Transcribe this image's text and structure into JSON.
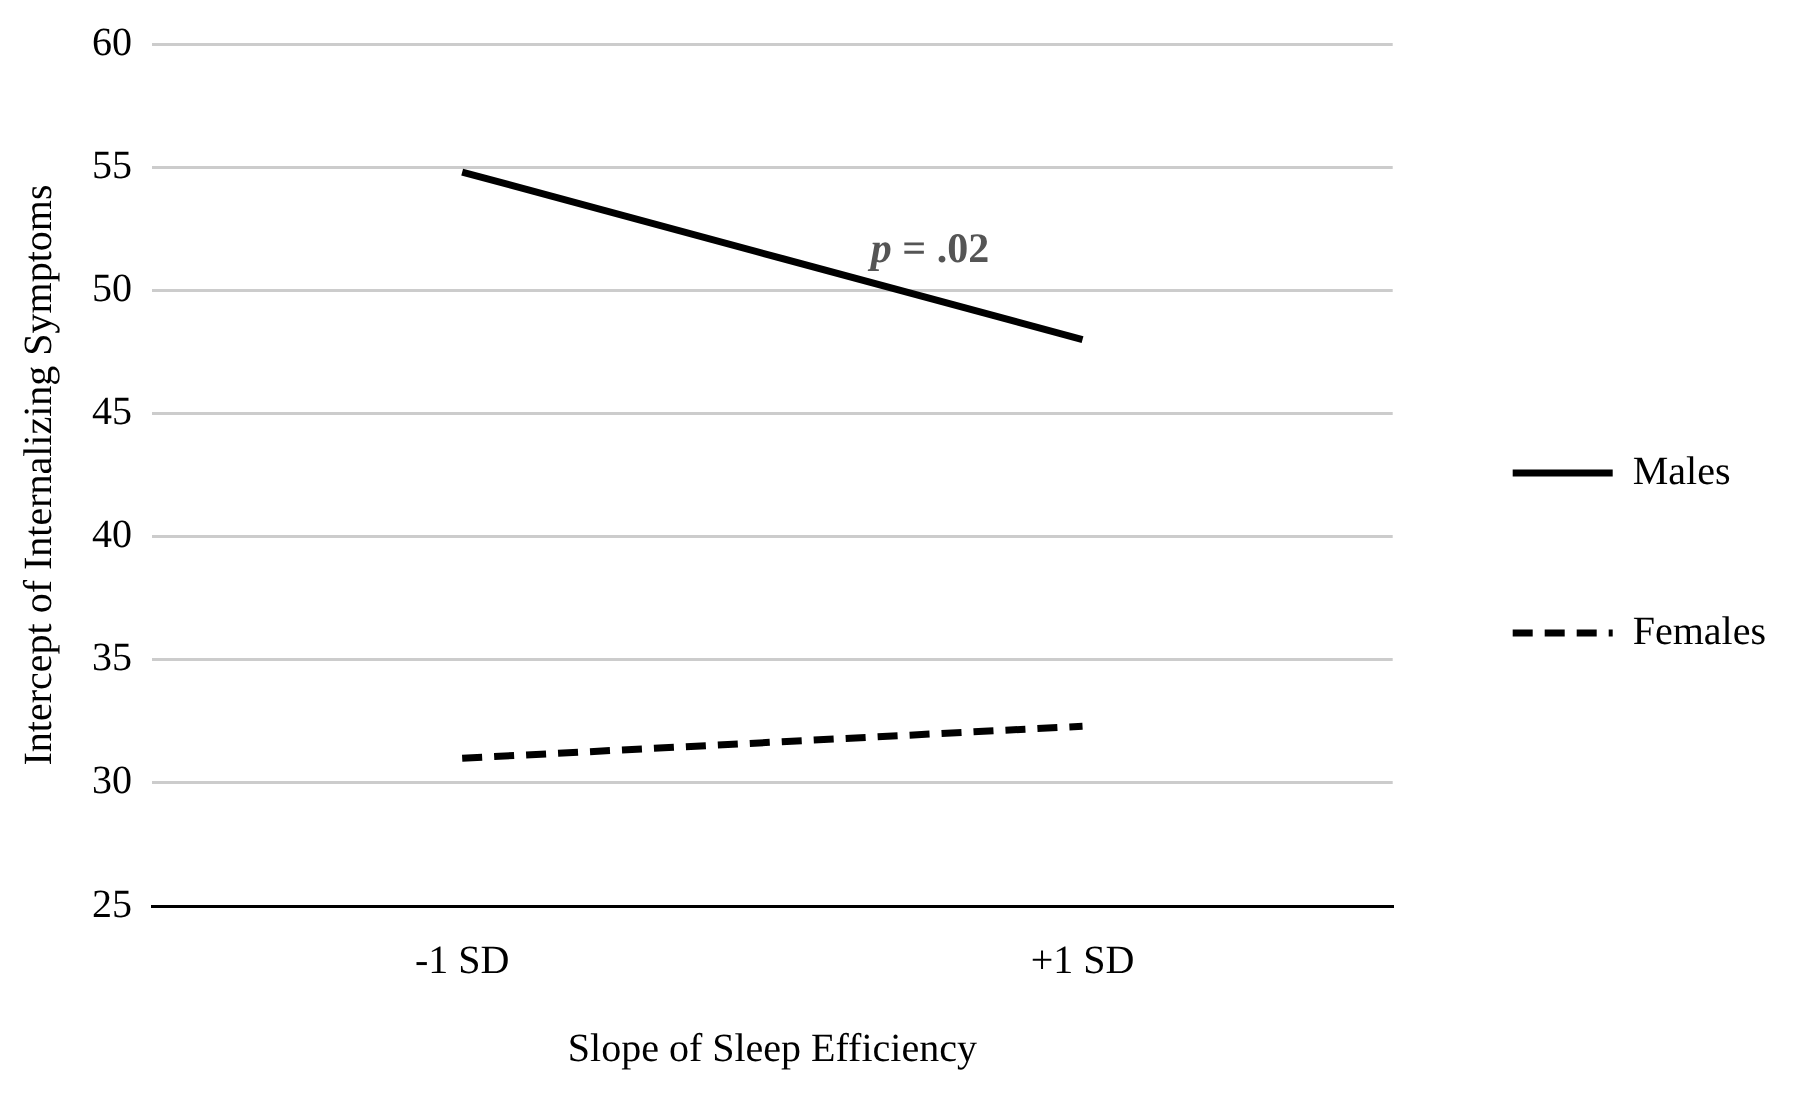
{
  "chart_data": {
    "type": "line",
    "xlabel": "Slope of Sleep Efficiency",
    "ylabel": "Intercept of Internalizing Symptoms",
    "categories": [
      "-1 SD",
      "+1 SD"
    ],
    "series": [
      {
        "name": "Males",
        "color": "#000000",
        "values": [
          54.8,
          48.0
        ],
        "line_style": "solid"
      },
      {
        "name": "Females",
        "color": "#000000",
        "values": [
          31.0,
          32.3
        ],
        "line_style": "dashed"
      }
    ],
    "ylim": [
      25,
      60
    ],
    "yticks": [
      25,
      30,
      35,
      40,
      45,
      50,
      55,
      60
    ],
    "grid": "y",
    "legend": "right",
    "marker": "none",
    "annotations": [
      "p = .02"
    ]
  }
}
